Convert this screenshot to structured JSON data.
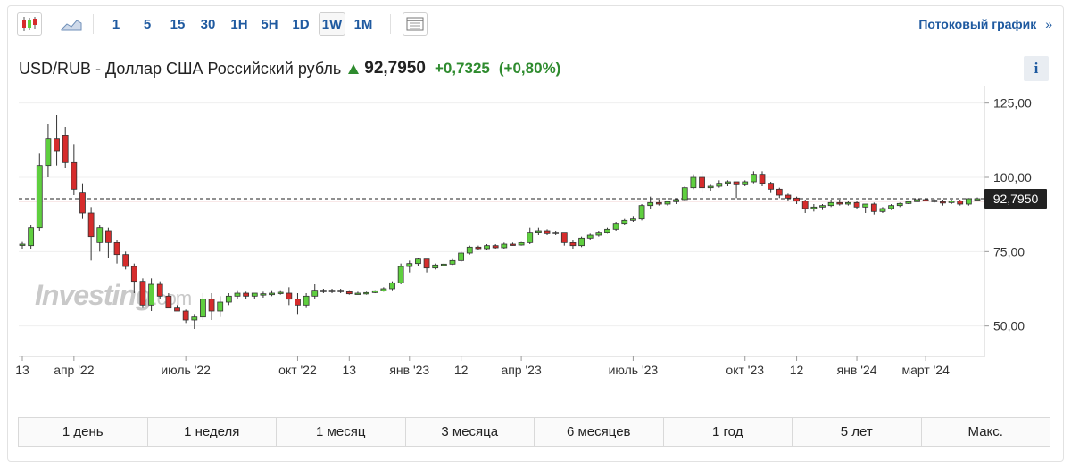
{
  "toolbar": {
    "chart_types": [
      {
        "name": "candlestick-icon"
      },
      {
        "name": "area-chart-icon"
      }
    ],
    "intervals": [
      "1",
      "5",
      "15",
      "30",
      "1H",
      "5H",
      "1D",
      "1W",
      "1M"
    ],
    "active_interval": "1W",
    "streaming_label": "Потоковый график",
    "streaming_chevron": "»"
  },
  "header": {
    "pair": "USD/RUB - Доллар США Российский рубль",
    "price": "92,7950",
    "change": "+0,7325",
    "change_pct": "(+0,80%)",
    "info_label": "i",
    "up_color": "#2e8b2e"
  },
  "watermark": {
    "brand": "Investing",
    "suffix": ".com"
  },
  "colors": {
    "up": "#5fcf3f",
    "down": "#d62c2c",
    "outline": "#333333",
    "price_tag": "#222222"
  },
  "chart_data": {
    "type": "candlestick",
    "title": "USD/RUB",
    "ylim": [
      40,
      130
    ],
    "yticks": [
      125,
      100,
      75,
      50
    ],
    "ytick_labels": [
      "125,00",
      "100,00",
      "75,00",
      "50,00"
    ],
    "x_index_range": [
      0,
      111
    ],
    "xticks": [
      {
        "i": 0,
        "label": "13"
      },
      {
        "i": 6,
        "label": "апр '22"
      },
      {
        "i": 19,
        "label": "июль '22"
      },
      {
        "i": 32,
        "label": "окт '22"
      },
      {
        "i": 38,
        "label": "13"
      },
      {
        "i": 45,
        "label": "янв '23"
      },
      {
        "i": 51,
        "label": "12"
      },
      {
        "i": 58,
        "label": "апр '23"
      },
      {
        "i": 71,
        "label": "июль '23"
      },
      {
        "i": 84,
        "label": "окт '23"
      },
      {
        "i": 90,
        "label": "12"
      },
      {
        "i": 97,
        "label": "янв '24"
      },
      {
        "i": 105,
        "label": "март '24"
      }
    ],
    "last_price": 92.795,
    "last_price_label": "92,7950",
    "reference_line": 92.0,
    "candles": [
      {
        "o": 77.5,
        "h": 78.5,
        "l": 76,
        "c": 77.5
      },
      {
        "o": 77,
        "h": 84,
        "l": 76,
        "c": 83
      },
      {
        "o": 83,
        "h": 108,
        "l": 82,
        "c": 104
      },
      {
        "o": 104,
        "h": 118,
        "l": 100,
        "c": 113
      },
      {
        "o": 113,
        "h": 121,
        "l": 104,
        "c": 109
      },
      {
        "o": 114,
        "h": 117,
        "l": 103,
        "c": 105
      },
      {
        "o": 105,
        "h": 111,
        "l": 94,
        "c": 96
      },
      {
        "o": 95,
        "h": 98,
        "l": 86,
        "c": 88
      },
      {
        "o": 88,
        "h": 90,
        "l": 72,
        "c": 80
      },
      {
        "o": 78,
        "h": 84,
        "l": 75,
        "c": 83
      },
      {
        "o": 82,
        "h": 83,
        "l": 73,
        "c": 78
      },
      {
        "o": 78,
        "h": 79,
        "l": 71,
        "c": 74
      },
      {
        "o": 74,
        "h": 75,
        "l": 69,
        "c": 70
      },
      {
        "o": 70,
        "h": 71,
        "l": 61,
        "c": 65
      },
      {
        "o": 65,
        "h": 66,
        "l": 56,
        "c": 57
      },
      {
        "o": 57,
        "h": 66,
        "l": 55,
        "c": 64
      },
      {
        "o": 64,
        "h": 65,
        "l": 59,
        "c": 60
      },
      {
        "o": 60,
        "h": 61,
        "l": 56,
        "c": 56
      },
      {
        "o": 56,
        "h": 57,
        "l": 55,
        "c": 55
      },
      {
        "o": 55,
        "h": 55.5,
        "l": 51,
        "c": 52
      },
      {
        "o": 52,
        "h": 54,
        "l": 49,
        "c": 53
      },
      {
        "o": 53,
        "h": 61,
        "l": 52,
        "c": 59
      },
      {
        "o": 59,
        "h": 61,
        "l": 52,
        "c": 55
      },
      {
        "o": 55,
        "h": 60,
        "l": 53,
        "c": 58
      },
      {
        "o": 58,
        "h": 61,
        "l": 57,
        "c": 60
      },
      {
        "o": 60,
        "h": 62,
        "l": 59,
        "c": 61
      },
      {
        "o": 61,
        "h": 61.5,
        "l": 59,
        "c": 60
      },
      {
        "o": 60,
        "h": 61,
        "l": 59,
        "c": 61
      },
      {
        "o": 60.5,
        "h": 61.5,
        "l": 59.5,
        "c": 60.8
      },
      {
        "o": 60.5,
        "h": 62,
        "l": 60,
        "c": 61
      },
      {
        "o": 61,
        "h": 62,
        "l": 60.5,
        "c": 61.3
      },
      {
        "o": 61,
        "h": 63,
        "l": 57,
        "c": 59
      },
      {
        "o": 59,
        "h": 61,
        "l": 54,
        "c": 57
      },
      {
        "o": 57,
        "h": 61,
        "l": 56,
        "c": 60
      },
      {
        "o": 60,
        "h": 64,
        "l": 59,
        "c": 62
      },
      {
        "o": 62,
        "h": 62.5,
        "l": 61,
        "c": 61.5
      },
      {
        "o": 61.5,
        "h": 62.5,
        "l": 61,
        "c": 62
      },
      {
        "o": 62,
        "h": 62.5,
        "l": 61,
        "c": 61.5
      },
      {
        "o": 61.5,
        "h": 62,
        "l": 60.5,
        "c": 60.8
      },
      {
        "o": 60.8,
        "h": 61.5,
        "l": 60.5,
        "c": 61
      },
      {
        "o": 61,
        "h": 61.5,
        "l": 60.5,
        "c": 61.2
      },
      {
        "o": 61.2,
        "h": 62,
        "l": 61,
        "c": 61.8
      },
      {
        "o": 61.8,
        "h": 63,
        "l": 61.5,
        "c": 62.5
      },
      {
        "o": 62.5,
        "h": 65,
        "l": 62,
        "c": 64.5
      },
      {
        "o": 64.5,
        "h": 71,
        "l": 64,
        "c": 70
      },
      {
        "o": 70,
        "h": 72,
        "l": 68,
        "c": 71
      },
      {
        "o": 71,
        "h": 73,
        "l": 70,
        "c": 72.5
      },
      {
        "o": 72.5,
        "h": 72.5,
        "l": 68,
        "c": 69.5
      },
      {
        "o": 69.5,
        "h": 71,
        "l": 69,
        "c": 70.5
      },
      {
        "o": 70.5,
        "h": 71,
        "l": 70,
        "c": 70.8
      },
      {
        "o": 70.8,
        "h": 72.5,
        "l": 70.5,
        "c": 72
      },
      {
        "o": 72,
        "h": 75,
        "l": 71.5,
        "c": 74.5
      },
      {
        "o": 74.5,
        "h": 77,
        "l": 74,
        "c": 76.5
      },
      {
        "o": 76.5,
        "h": 77,
        "l": 75.5,
        "c": 76
      },
      {
        "o": 76,
        "h": 77.5,
        "l": 75.5,
        "c": 77
      },
      {
        "o": 77,
        "h": 77.5,
        "l": 76,
        "c": 76.3
      },
      {
        "o": 76.3,
        "h": 78,
        "l": 76,
        "c": 77.5
      },
      {
        "o": 77.5,
        "h": 78,
        "l": 77,
        "c": 77.2
      },
      {
        "o": 77.2,
        "h": 78.5,
        "l": 77,
        "c": 78
      },
      {
        "o": 78,
        "h": 83,
        "l": 77.5,
        "c": 81.5
      },
      {
        "o": 81.5,
        "h": 83,
        "l": 80.5,
        "c": 82
      },
      {
        "o": 82,
        "h": 82.5,
        "l": 80.5,
        "c": 81
      },
      {
        "o": 81,
        "h": 82,
        "l": 80.5,
        "c": 81.5
      },
      {
        "o": 81.5,
        "h": 81.5,
        "l": 77,
        "c": 78
      },
      {
        "o": 78,
        "h": 79,
        "l": 76,
        "c": 77
      },
      {
        "o": 77,
        "h": 80,
        "l": 76.5,
        "c": 79.5
      },
      {
        "o": 79.5,
        "h": 81,
        "l": 79,
        "c": 80.5
      },
      {
        "o": 80.5,
        "h": 82,
        "l": 80,
        "c": 81.5
      },
      {
        "o": 81.5,
        "h": 83,
        "l": 81,
        "c": 82.5
      },
      {
        "o": 82.5,
        "h": 85,
        "l": 82,
        "c": 84.5
      },
      {
        "o": 84.5,
        "h": 86,
        "l": 84,
        "c": 85.5
      },
      {
        "o": 85.5,
        "h": 87,
        "l": 85,
        "c": 86
      },
      {
        "o": 86,
        "h": 91,
        "l": 85.5,
        "c": 90.5
      },
      {
        "o": 90.5,
        "h": 93.5,
        "l": 89.5,
        "c": 91.5
      },
      {
        "o": 91.5,
        "h": 92.5,
        "l": 90.5,
        "c": 91
      },
      {
        "o": 91,
        "h": 92,
        "l": 90.5,
        "c": 91.8
      },
      {
        "o": 91.8,
        "h": 93,
        "l": 91,
        "c": 92.5
      },
      {
        "o": 92.5,
        "h": 97,
        "l": 92,
        "c": 96.5
      },
      {
        "o": 96.5,
        "h": 101,
        "l": 96,
        "c": 100
      },
      {
        "o": 100,
        "h": 102,
        "l": 95,
        "c": 96.5
      },
      {
        "o": 96.5,
        "h": 97.5,
        "l": 95.5,
        "c": 97
      },
      {
        "o": 97,
        "h": 99,
        "l": 96.5,
        "c": 98
      },
      {
        "o": 98,
        "h": 99,
        "l": 97,
        "c": 98.5
      },
      {
        "o": 98.5,
        "h": 98.5,
        "l": 93,
        "c": 97.5
      },
      {
        "o": 97.5,
        "h": 99,
        "l": 97,
        "c": 98.5
      },
      {
        "o": 98.5,
        "h": 102,
        "l": 98,
        "c": 101
      },
      {
        "o": 101,
        "h": 102,
        "l": 97,
        "c": 98
      },
      {
        "o": 98,
        "h": 98.5,
        "l": 95,
        "c": 96
      },
      {
        "o": 96,
        "h": 96.5,
        "l": 93,
        "c": 94
      },
      {
        "o": 94,
        "h": 94.5,
        "l": 92,
        "c": 93
      },
      {
        "o": 93,
        "h": 93.5,
        "l": 91,
        "c": 92
      },
      {
        "o": 92,
        "h": 92.5,
        "l": 88,
        "c": 89.5
      },
      {
        "o": 89.5,
        "h": 91,
        "l": 88.5,
        "c": 90
      },
      {
        "o": 90,
        "h": 91,
        "l": 89,
        "c": 90.5
      },
      {
        "o": 90.5,
        "h": 92.5,
        "l": 90,
        "c": 91.5
      },
      {
        "o": 91.5,
        "h": 92.5,
        "l": 90.5,
        "c": 91
      },
      {
        "o": 91,
        "h": 92,
        "l": 90.5,
        "c": 91.5
      },
      {
        "o": 91.5,
        "h": 92,
        "l": 89.5,
        "c": 90
      },
      {
        "o": 90,
        "h": 91,
        "l": 88,
        "c": 91
      },
      {
        "o": 91,
        "h": 91.5,
        "l": 87.5,
        "c": 88.5
      },
      {
        "o": 88.5,
        "h": 90,
        "l": 88,
        "c": 89.5
      },
      {
        "o": 89.5,
        "h": 91,
        "l": 89,
        "c": 90.5
      },
      {
        "o": 90.5,
        "h": 91.5,
        "l": 90,
        "c": 91.2
      },
      {
        "o": 91.2,
        "h": 92,
        "l": 91,
        "c": 91.8
      },
      {
        "o": 91.8,
        "h": 93,
        "l": 91.5,
        "c": 92.5
      },
      {
        "o": 92.5,
        "h": 93,
        "l": 92,
        "c": 92.3
      },
      {
        "o": 92.3,
        "h": 92.8,
        "l": 91.5,
        "c": 91.8
      },
      {
        "o": 91.8,
        "h": 92.5,
        "l": 90.5,
        "c": 91.5
      },
      {
        "o": 91.5,
        "h": 92.5,
        "l": 91,
        "c": 92
      },
      {
        "o": 92,
        "h": 92.5,
        "l": 90.5,
        "c": 91
      },
      {
        "o": 91,
        "h": 93,
        "l": 90.5,
        "c": 92.8
      },
      {
        "o": 92.8,
        "h": 93.2,
        "l": 92.5,
        "c": 92.8
      }
    ]
  },
  "periods": [
    "1 день",
    "1 неделя",
    "1 месяц",
    "3 месяца",
    "6 месяцев",
    "1 год",
    "5 лет",
    "Макс."
  ],
  "active_period": "Макс."
}
